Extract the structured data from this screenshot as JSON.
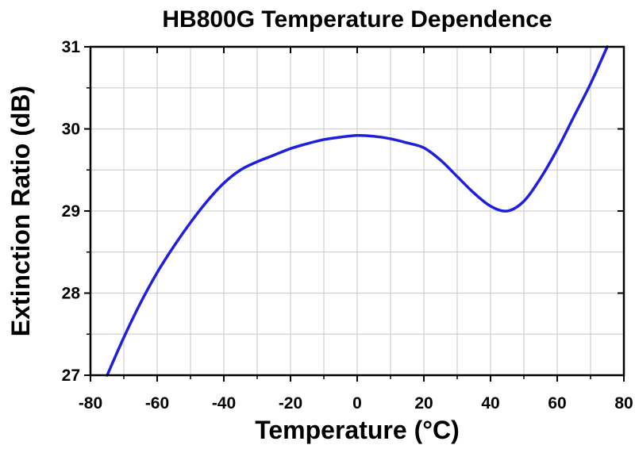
{
  "chart_data": {
    "type": "line",
    "title": "HB800G Temperature Dependence",
    "xlabel": "Temperature (°C)",
    "ylabel": "Extinction Ratio (dB)",
    "xlim": [
      -80,
      80
    ],
    "ylim": [
      27,
      31
    ],
    "xticks": [
      -80,
      -60,
      -40,
      -20,
      0,
      20,
      40,
      60,
      80
    ],
    "yticks": [
      27,
      28,
      29,
      30,
      31
    ],
    "grid": true,
    "legend": "none",
    "series": [
      {
        "color": "#1f1fdc",
        "x": [
          -75,
          -70,
          -65,
          -60,
          -55,
          -50,
          -45,
          -40,
          -35,
          -30,
          -25,
          -20,
          -15,
          -10,
          -5,
          0,
          5,
          10,
          15,
          20,
          25,
          30,
          35,
          40,
          45,
          50,
          55,
          60,
          65,
          70,
          75
        ],
        "y": [
          27.0,
          27.46,
          27.88,
          28.25,
          28.57,
          28.86,
          29.12,
          29.34,
          29.5,
          29.6,
          29.68,
          29.76,
          29.82,
          29.87,
          29.9,
          29.92,
          29.91,
          29.88,
          29.83,
          29.77,
          29.62,
          29.42,
          29.22,
          29.06,
          29.0,
          29.12,
          29.4,
          29.75,
          30.15,
          30.55,
          31.0
        ]
      }
    ]
  }
}
